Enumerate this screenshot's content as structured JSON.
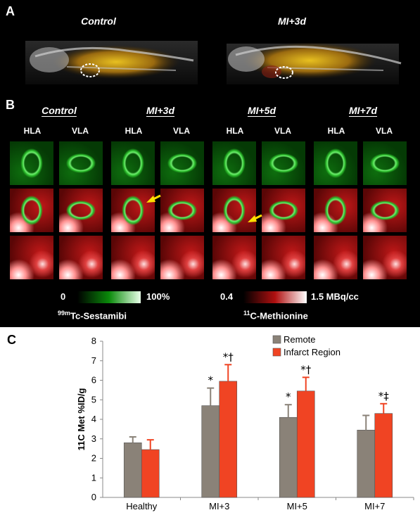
{
  "panelA": {
    "letter": "A",
    "conditions": [
      "Control",
      "MI+3d"
    ]
  },
  "panelB": {
    "letter": "B",
    "conditions": [
      "Control",
      "MI+3d",
      "MI+5d",
      "MI+7d"
    ],
    "views": [
      "HLA",
      "VLA"
    ],
    "scales": {
      "green": {
        "min": "0",
        "max": "100%",
        "colors": [
          "#000000",
          "#0a8a0a",
          "#e8ffe8"
        ]
      },
      "red": {
        "min": "0.4",
        "max": "1.5 MBq/cc",
        "colors": [
          "#000000",
          "#b01010",
          "#ffffff"
        ]
      }
    },
    "tracers": {
      "green_sup": "99m",
      "green_name": "Tc-Sestamibi",
      "red_sup": "11",
      "red_name": "C-Methionine"
    }
  },
  "panelC": {
    "letter": "C",
    "chart_data": {
      "type": "bar",
      "categories": [
        "Healthy",
        "MI+3",
        "MI+5",
        "MI+7"
      ],
      "series": [
        {
          "name": "Remote",
          "color": "#8a8278",
          "values": [
            2.8,
            4.7,
            4.1,
            3.45
          ],
          "errors": [
            0.3,
            0.9,
            0.65,
            0.75
          ]
        },
        {
          "name": "Infarct Region",
          "color": "#f04423",
          "values": [
            2.45,
            5.95,
            5.45,
            4.3
          ],
          "errors": [
            0.5,
            0.85,
            0.7,
            0.5
          ]
        }
      ],
      "ylabel": "11C Met %ID/g",
      "ylim": [
        0,
        8
      ],
      "yticks": [
        0,
        1,
        2,
        3,
        4,
        5,
        6,
        7,
        8
      ],
      "annotations": {
        "remote": [
          "",
          "*",
          "*",
          ""
        ],
        "infarct": [
          "",
          "*†",
          "*†",
          "*‡"
        ]
      },
      "legend_position": "top-right"
    }
  }
}
